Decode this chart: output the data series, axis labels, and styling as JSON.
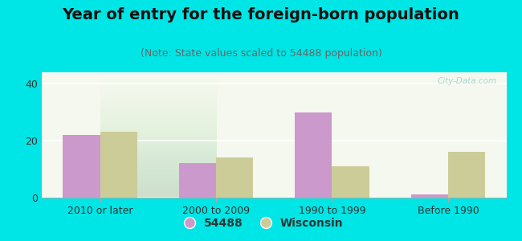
{
  "title": "Year of entry for the foreign-born population",
  "subtitle": "(Note: State values scaled to 54488 population)",
  "categories": [
    "2010 or later",
    "2000 to 2009",
    "1990 to 1999",
    "Before 1990"
  ],
  "values_54488": [
    22,
    12,
    30,
    1
  ],
  "values_wisconsin": [
    23,
    14,
    11,
    16
  ],
  "color_54488": "#cc99cc",
  "color_wisconsin": "#cccc99",
  "background_outer": "#00e5e5",
  "background_plot_top": "#f5f8ee",
  "background_plot_bottom": "#e0ece0",
  "ylim": [
    0,
    44
  ],
  "yticks": [
    0,
    20,
    40
  ],
  "bar_width": 0.32,
  "legend_label_54488": "54488",
  "legend_label_wisconsin": "Wisconsin",
  "watermark": "City-Data.com",
  "title_fontsize": 14,
  "subtitle_fontsize": 9,
  "tick_fontsize": 9
}
